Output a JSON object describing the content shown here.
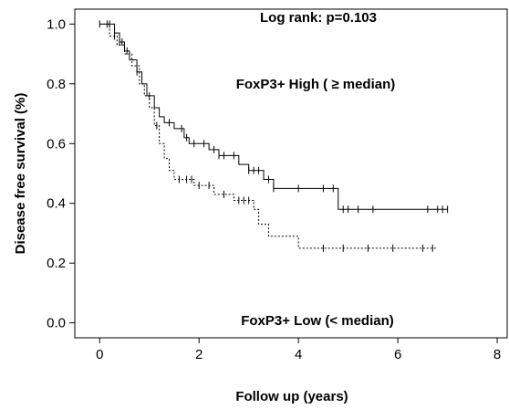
{
  "chart_data": {
    "type": "line",
    "subtype": "kaplan-meier",
    "xlabel": "Follow up (years)",
    "ylabel": "Disease free survival (%)",
    "xlim": [
      -0.5,
      8.2
    ],
    "ylim": [
      -0.05,
      1.05
    ],
    "xticks": [
      0,
      2,
      4,
      6,
      8
    ],
    "yticks": [
      0.0,
      0.2,
      0.4,
      0.6,
      0.8,
      1.0
    ],
    "ytick_labels": [
      "0.0",
      "0.2",
      "0.4",
      "0.6",
      "0.8",
      "1.0"
    ],
    "xtick_labels": [
      "0",
      "2",
      "4",
      "6",
      "8"
    ],
    "grid": false,
    "annotations": [
      {
        "text": "Log rank: p=0.103"
      },
      {
        "text": "FoxP3+ High ( ≥ median)"
      },
      {
        "text": "FoxP3+ Low (< median)"
      }
    ],
    "series": [
      {
        "style": "solid",
        "steps": [
          [
            0,
            1.0
          ],
          [
            0.3,
            0.97
          ],
          [
            0.4,
            0.94
          ],
          [
            0.5,
            0.91
          ],
          [
            0.6,
            0.88
          ],
          [
            0.75,
            0.84
          ],
          [
            0.85,
            0.8
          ],
          [
            0.95,
            0.76
          ],
          [
            1.1,
            0.72
          ],
          [
            1.2,
            0.69
          ],
          [
            1.3,
            0.67
          ],
          [
            1.5,
            0.65
          ],
          [
            1.7,
            0.62
          ],
          [
            1.8,
            0.6
          ],
          [
            2.2,
            0.58
          ],
          [
            2.4,
            0.56
          ],
          [
            2.8,
            0.53
          ],
          [
            3.0,
            0.51
          ],
          [
            3.3,
            0.48
          ],
          [
            3.5,
            0.45
          ],
          [
            4.8,
            0.38
          ],
          [
            7.0,
            0.38
          ]
        ],
        "censored_x": [
          0.0,
          0.2,
          0.4,
          0.45,
          0.55,
          0.75,
          1.0,
          1.4,
          1.65,
          1.75,
          1.9,
          2.1,
          2.3,
          2.4,
          2.5,
          2.7,
          3.0,
          3.1,
          3.2,
          3.4,
          3.5,
          4.0,
          4.5,
          4.7,
          4.9,
          5.0,
          5.2,
          5.5,
          6.6,
          6.8,
          6.9,
          7.0
        ]
      },
      {
        "style": "dashed",
        "steps": [
          [
            0,
            1.0
          ],
          [
            0.2,
            0.96
          ],
          [
            0.35,
            0.93
          ],
          [
            0.5,
            0.9
          ],
          [
            0.65,
            0.86
          ],
          [
            0.8,
            0.8
          ],
          [
            0.9,
            0.76
          ],
          [
            1.0,
            0.72
          ],
          [
            1.1,
            0.66
          ],
          [
            1.2,
            0.6
          ],
          [
            1.3,
            0.55
          ],
          [
            1.4,
            0.51
          ],
          [
            1.5,
            0.48
          ],
          [
            1.9,
            0.46
          ],
          [
            2.3,
            0.43
          ],
          [
            2.7,
            0.41
          ],
          [
            3.1,
            0.38
          ],
          [
            3.2,
            0.33
          ],
          [
            3.4,
            0.29
          ],
          [
            4.0,
            0.25
          ],
          [
            6.8,
            0.25
          ]
        ],
        "censored_x": [
          0.15,
          0.3,
          1.15,
          1.6,
          1.75,
          1.85,
          2.0,
          2.2,
          2.5,
          2.8,
          2.9,
          3.0,
          4.5,
          4.9,
          5.4,
          5.9,
          6.5,
          6.7
        ]
      }
    ]
  }
}
